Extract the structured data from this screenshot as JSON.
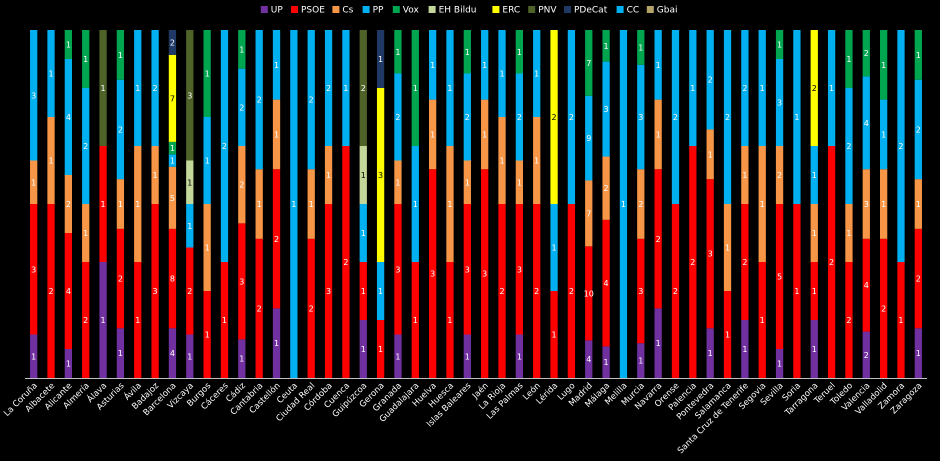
{
  "chart_data": {
    "type": "bar",
    "stacked": "percent",
    "legend_position": "top",
    "grid": false,
    "parties": [
      {
        "key": "UP",
        "name": "UP",
        "color": "#7030a0"
      },
      {
        "key": "PSOE",
        "name": "PSOE",
        "color": "#ff0000"
      },
      {
        "key": "Cs",
        "name": "Cs",
        "color": "#f79646"
      },
      {
        "key": "PP",
        "name": "PP",
        "color": "#00b0f0"
      },
      {
        "key": "Vox",
        "name": "Vox",
        "color": "#00a550"
      },
      {
        "key": "EHBildu",
        "name": "EH Bildu",
        "color": "#c4d79b"
      },
      {
        "key": "ERC",
        "name": "ERC",
        "color": "#ffff00"
      },
      {
        "key": "PNV",
        "name": "PNV",
        "color": "#4f6228"
      },
      {
        "key": "PDeCat",
        "name": "PDeCat",
        "color": "#1f3864"
      },
      {
        "key": "CC",
        "name": "CC",
        "color": "#00b0f0"
      },
      {
        "key": "Gbai",
        "name": "Gbai",
        "color": "#b3a369"
      }
    ],
    "categories": [
      "La Coruña",
      "Albacete",
      "Alicante",
      "Almería",
      "Álava",
      "Asturias",
      "Ávila",
      "Badajoz",
      "Barcelona",
      "Vizcaya",
      "Burgos",
      "Cáceres",
      "Cádiz",
      "Cantabria",
      "Castellón",
      "Ceuta",
      "Ciudad Real",
      "Córdoba",
      "Cuenca",
      "Guipúzcoa",
      "Gerona",
      "Granada",
      "Guadalajara",
      "Huelva",
      "Huesca",
      "Islas Baleares",
      "Jaén",
      "La Rioja",
      "Las Palmas",
      "León",
      "Lérida",
      "Lugo",
      "Madrid",
      "Málaga",
      "Melilla",
      "Murcia",
      "Navarra",
      "Orense",
      "Palencia",
      "Pontevedra",
      "Salamanca",
      "Santa Cruz de Tenerife",
      "Segovia",
      "Sevilla",
      "Soria",
      "Tarragona",
      "Teruel",
      "Toledo",
      "Valencia",
      "Valladolid",
      "Zamora",
      "Zaragoza"
    ],
    "seats": [
      {
        "UP": 1,
        "PSOE": 3,
        "Cs": 1,
        "PP": 3
      },
      {
        "PSOE": 2,
        "Cs": 1,
        "PP": 1
      },
      {
        "UP": 1,
        "PSOE": 4,
        "Cs": 2,
        "PP": 4,
        "Vox": 1
      },
      {
        "PSOE": 2,
        "Cs": 1,
        "PP": 2,
        "Vox": 1
      },
      {
        "UP": 1,
        "PSOE": 1,
        "PNV": 1
      },
      {
        "UP": 1,
        "PSOE": 2,
        "Cs": 1,
        "PP": 2,
        "Vox": 1
      },
      {
        "PSOE": 1,
        "Cs": 1,
        "PP": 1
      },
      {
        "PSOE": 3,
        "Cs": 1,
        "PP": 2
      },
      {
        "UP": 4,
        "PSOE": 8,
        "Cs": 5,
        "PP": 1,
        "Vox": 1,
        "ERC": 7,
        "PDeCat": 2
      },
      {
        "UP": 1,
        "PSOE": 2,
        "PP": 1,
        "EHBildu": 1,
        "PNV": 3
      },
      {
        "PSOE": 1,
        "Cs": 1,
        "PP": 1,
        "Vox": 1
      },
      {
        "PSOE": 1,
        "PP": 2
      },
      {
        "UP": 1,
        "PSOE": 3,
        "Cs": 2,
        "PP": 2,
        "Vox": 1
      },
      {
        "PSOE": 2,
        "Cs": 1,
        "PP": 2
      },
      {
        "UP": 1,
        "PSOE": 2,
        "Cs": 1,
        "PP": 1
      },
      {
        "PP": 1
      },
      {
        "PSOE": 2,
        "Cs": 1,
        "PP": 2
      },
      {
        "PSOE": 3,
        "Cs": 1,
        "PP": 2
      },
      {
        "PSOE": 2,
        "PP": 1
      },
      {
        "UP": 1,
        "PSOE": 1,
        "PP": 1,
        "EHBildu": 1,
        "PNV": 2
      },
      {
        "PSOE": 1,
        "PP": 1,
        "ERC": 3,
        "PDeCat": 1
      },
      {
        "UP": 1,
        "PSOE": 3,
        "Cs": 1,
        "PP": 2,
        "Vox": 1
      },
      {
        "PSOE": 1,
        "PP": 1,
        "Vox": 1
      },
      {
        "PSOE": 3,
        "Cs": 1,
        "PP": 1
      },
      {
        "PSOE": 1,
        "Cs": 1,
        "PP": 1
      },
      {
        "UP": 1,
        "PSOE": 3,
        "Cs": 1,
        "PP": 2,
        "Vox": 1
      },
      {
        "PSOE": 3,
        "Cs": 1,
        "PP": 1
      },
      {
        "PSOE": 2,
        "Cs": 1,
        "PP": 1
      },
      {
        "UP": 1,
        "PSOE": 3,
        "Cs": 1,
        "PP": 2,
        "Vox": 1
      },
      {
        "PSOE": 2,
        "Cs": 1,
        "PP": 1
      },
      {
        "PSOE": 1,
        "PP": 1,
        "ERC": 2
      },
      {
        "PSOE": 2,
        "PP": 2
      },
      {
        "UP": 4,
        "PSOE": 10,
        "Cs": 7,
        "PP": 9,
        "Vox": 7
      },
      {
        "UP": 1,
        "PSOE": 4,
        "Cs": 2,
        "PP": 3,
        "Vox": 1
      },
      {
        "PP": 1
      },
      {
        "UP": 1,
        "PSOE": 3,
        "Cs": 2,
        "PP": 3,
        "Vox": 1
      },
      {
        "UP": 1,
        "PSOE": 2,
        "Cs": 1,
        "PP": 1
      },
      {
        "PSOE": 2,
        "PP": 2
      },
      {
        "PSOE": 2,
        "PP": 1
      },
      {
        "UP": 1,
        "PSOE": 3,
        "Cs": 1,
        "PP": 2
      },
      {
        "PSOE": 1,
        "Cs": 1,
        "PP": 2
      },
      {
        "UP": 1,
        "PSOE": 2,
        "Cs": 1,
        "PP": 2
      },
      {
        "PSOE": 1,
        "Cs": 1,
        "PP": 1
      },
      {
        "UP": 1,
        "PSOE": 5,
        "Cs": 2,
        "PP": 3,
        "Vox": 1
      },
      {
        "PSOE": 1,
        "PP": 1
      },
      {
        "UP": 1,
        "PSOE": 1,
        "Cs": 1,
        "PP": 1,
        "ERC": 2
      },
      {
        "PSOE": 2,
        "PP": 1
      },
      {
        "PSOE": 2,
        "Cs": 1,
        "PP": 2,
        "Vox": 1
      },
      {
        "UP": 2,
        "PSOE": 4,
        "Cs": 3,
        "PP": 4,
        "Vox": 2
      },
      {
        "PSOE": 2,
        "Cs": 1,
        "PP": 1,
        "Vox": 1
      },
      {
        "PSOE": 1,
        "PP": 2
      },
      {
        "UP": 1,
        "PSOE": 2,
        "Cs": 1,
        "PP": 2,
        "Vox": 1
      }
    ]
  }
}
